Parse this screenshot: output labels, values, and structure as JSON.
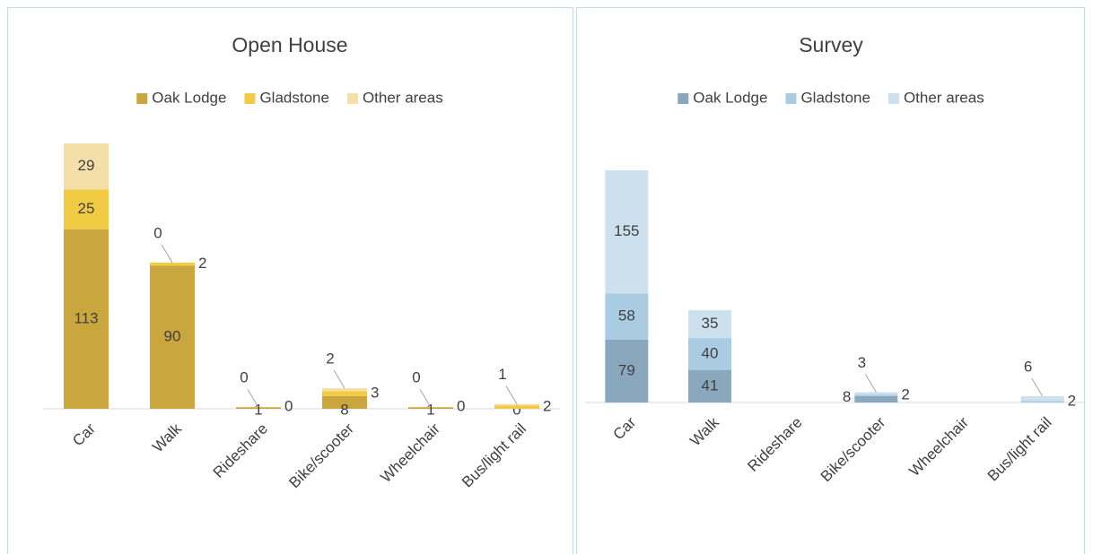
{
  "chart_data": [
    {
      "type": "stacked_bar",
      "title": "Open House",
      "categories": [
        "Car",
        "Walk",
        "Rideshare",
        "Bike/scooter",
        "Wheelchair",
        "Bus/light rail"
      ],
      "series": [
        {
          "name": "Oak Lodge",
          "color": "#c9a73e",
          "values": [
            113,
            90,
            1,
            8,
            1,
            0
          ]
        },
        {
          "name": "Gladstone",
          "color": "#f2cb44",
          "values": [
            25,
            2,
            0,
            3,
            0,
            2
          ]
        },
        {
          "name": "Other areas",
          "color": "#f5dfa8",
          "values": [
            29,
            0,
            0,
            2,
            0,
            1
          ]
        }
      ]
    },
    {
      "type": "stacked_bar",
      "title": "Survey",
      "categories": [
        "Car",
        "Walk",
        "Rideshare",
        "Bike/scooter",
        "Wheelchair",
        "Bus/light rail"
      ],
      "series": [
        {
          "name": "Oak Lodge",
          "color": "#8aa8bd",
          "values": [
            79,
            41,
            null,
            8,
            null,
            null
          ]
        },
        {
          "name": "Gladstone",
          "color": "#a9cce3",
          "values": [
            58,
            40,
            null,
            2,
            null,
            2
          ]
        },
        {
          "name": "Other areas",
          "color": "#cde0ee",
          "values": [
            155,
            35,
            null,
            3,
            null,
            6
          ]
        }
      ]
    }
  ]
}
